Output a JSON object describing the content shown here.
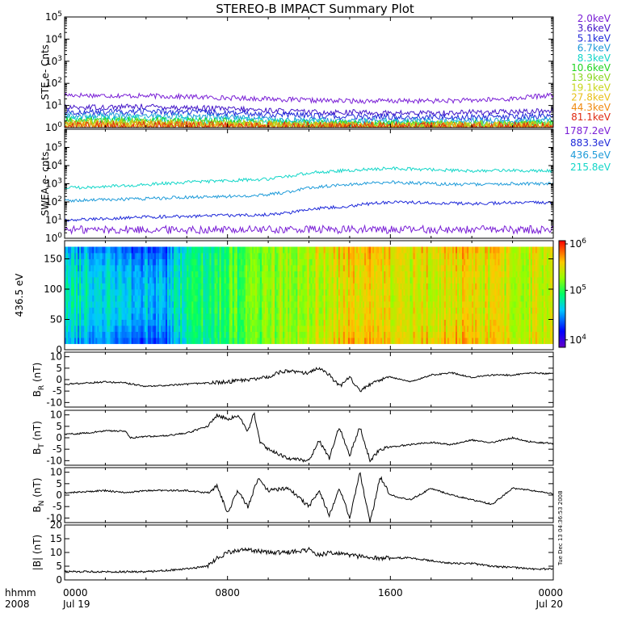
{
  "title": "STEREO-B IMPACT Summary Plot",
  "x_axis": {
    "corner_label_top": "hhmm",
    "corner_label_bottom": "2008",
    "ticks": [
      {
        "time": "0000",
        "date": "Jul 19",
        "hour": 0
      },
      {
        "time": "0800",
        "date": "",
        "hour": 8
      },
      {
        "time": "1600",
        "date": "",
        "hour": 16
      },
      {
        "time": "0000",
        "date": "Jul 20",
        "hour": 24
      }
    ]
  },
  "timestamp_vertical": "Tue Dec 13 04:36:53 2008",
  "chart_data": [
    {
      "type": "line",
      "ylabel": "STE e- Cnts",
      "yscale": "log",
      "ylim": [
        1,
        100000
      ],
      "yticks": [
        {
          "base": "10",
          "exp": "0",
          "value": 1
        },
        {
          "base": "10",
          "exp": "1",
          "value": 10
        },
        {
          "base": "10",
          "exp": "2",
          "value": 100
        },
        {
          "base": "10",
          "exp": "3",
          "value": 1000
        },
        {
          "base": "10",
          "exp": "4",
          "value": 10000
        },
        {
          "base": "10",
          "exp": "5",
          "value": 100000
        }
      ],
      "x_hours": [
        0,
        2,
        4,
        6,
        8,
        10,
        12,
        14,
        16,
        18,
        20,
        22,
        24
      ],
      "series": [
        {
          "name": "2.0keV",
          "color": "#7a1fd6",
          "values": [
            30,
            28,
            27,
            25,
            22,
            20,
            17,
            16,
            16,
            16,
            17,
            20,
            30
          ]
        },
        {
          "name": "3.6keV",
          "color": "#4416c8",
          "values": [
            8,
            8.5,
            9,
            8,
            7,
            6,
            5,
            5,
            4.5,
            4.5,
            5,
            5,
            6
          ]
        },
        {
          "name": "5.1keV",
          "color": "#1f2ad9",
          "values": [
            5,
            5,
            5.5,
            5,
            4.5,
            4,
            3.5,
            3,
            3,
            3,
            3,
            3,
            3.5
          ]
        },
        {
          "name": "6.7keV",
          "color": "#1e9bd9",
          "values": [
            3.5,
            3.5,
            3.5,
            3.2,
            3,
            2.5,
            2.2,
            2,
            2,
            2,
            2,
            2,
            2.2
          ]
        },
        {
          "name": "8.3keV",
          "color": "#12d6c8",
          "values": [
            2.5,
            2.5,
            2.5,
            2.3,
            2.1,
            1.9,
            1.7,
            1.6,
            1.6,
            1.6,
            1.6,
            1.6,
            1.7
          ]
        },
        {
          "name": "10.6keV",
          "color": "#22d622",
          "values": [
            2,
            2,
            2,
            1.9,
            1.8,
            1.6,
            1.5,
            1.4,
            1.4,
            1.4,
            1.4,
            1.4,
            1.5
          ]
        },
        {
          "name": "13.9keV",
          "color": "#8ad61e",
          "values": [
            1.7,
            1.7,
            1.7,
            1.6,
            1.5,
            1.4,
            1.3,
            1.3,
            1.3,
            1.3,
            1.3,
            1.3,
            1.3
          ]
        },
        {
          "name": "19.1keV",
          "color": "#c8d61a",
          "values": [
            1.5,
            1.5,
            1.5,
            1.4,
            1.4,
            1.3,
            1.2,
            1.2,
            1.2,
            1.2,
            1.2,
            1.2,
            1.2
          ]
        },
        {
          "name": "27.8keV",
          "color": "#e8c01a",
          "values": [
            1.3,
            1.3,
            1.3,
            1.3,
            1.2,
            1.2,
            1.1,
            1.1,
            1.1,
            1.1,
            1.1,
            1.1,
            1.1
          ]
        },
        {
          "name": "44.3keV",
          "color": "#f08a10",
          "values": [
            1.2,
            1.2,
            1.2,
            1.2,
            1.1,
            1.1,
            1.05,
            1.05,
            1.05,
            1.05,
            1.05,
            1.05,
            1.05
          ]
        },
        {
          "name": "81.1keV",
          "color": "#e02a10",
          "values": [
            1.1,
            1.1,
            1.1,
            1.1,
            1.05,
            1.05,
            1.02,
            1.02,
            1.02,
            1.02,
            1.02,
            1.02,
            1.02
          ]
        }
      ]
    },
    {
      "type": "line",
      "ylabel": "SWEA e- cnts",
      "yscale": "log",
      "ylim": [
        1,
        1000000
      ],
      "yticks": [
        {
          "base": "10",
          "exp": "0",
          "value": 1
        },
        {
          "base": "10",
          "exp": "1",
          "value": 10
        },
        {
          "base": "10",
          "exp": "2",
          "value": 100
        },
        {
          "base": "10",
          "exp": "3",
          "value": 1000
        },
        {
          "base": "10",
          "exp": "4",
          "value": 10000
        },
        {
          "base": "10",
          "exp": "5",
          "value": 100000
        }
      ],
      "x_hours": [
        0,
        2,
        4,
        6,
        8,
        10,
        11,
        12,
        14,
        16,
        18,
        20,
        22,
        24
      ],
      "series": [
        {
          "name": "1787.2eV",
          "color": "#7a1fd6",
          "values": [
            3,
            3,
            3,
            3,
            3,
            3,
            3,
            3,
            3,
            3,
            3,
            3,
            3,
            3
          ]
        },
        {
          "name": "883.3eV",
          "color": "#1f2ad9",
          "values": [
            10,
            12,
            15,
            16,
            18,
            20,
            25,
            40,
            60,
            100,
            90,
            80,
            90,
            90
          ]
        },
        {
          "name": "436.5eV",
          "color": "#1e9bd9",
          "values": [
            120,
            130,
            150,
            180,
            200,
            250,
            350,
            600,
            900,
            1200,
            1000,
            900,
            1000,
            1000
          ]
        },
        {
          "name": "215.8eV",
          "color": "#12d6c8",
          "values": [
            600,
            700,
            900,
            1200,
            1500,
            1800,
            2500,
            4000,
            5500,
            7000,
            6000,
            5000,
            5500,
            5000
          ]
        }
      ]
    },
    {
      "type": "heatmap",
      "ylabel": "436.5 eV",
      "ylim": [
        0,
        180
      ],
      "yticks": [
        0,
        50,
        100,
        150
      ],
      "colorbar": {
        "scale": "log",
        "ticks": [
          {
            "base": "10",
            "exp": "6",
            "value": 1000000
          },
          {
            "base": "10",
            "exp": "5",
            "value": 100000
          },
          {
            "base": "10",
            "exp": "4",
            "value": 10000
          }
        ]
      },
      "pitch_angle_range": [
        10,
        170
      ],
      "x_hours": [
        0,
        1,
        2,
        3,
        4,
        5,
        6,
        7,
        8,
        9,
        10,
        11,
        12,
        13,
        14,
        15,
        16,
        17,
        18,
        19,
        20,
        21,
        22,
        23,
        24
      ],
      "flux_low_pitch": [
        20000,
        20000,
        18000,
        15000,
        12000,
        12000,
        40000,
        60000,
        80000,
        100000,
        150000,
        200000,
        250000,
        400000,
        500000,
        500000,
        450000,
        300000,
        500000,
        600000,
        500000,
        400000,
        300000,
        300000,
        300000
      ],
      "flux_high_pitch": [
        60000,
        55000,
        50000,
        45000,
        40000,
        40000,
        70000,
        90000,
        110000,
        130000,
        160000,
        180000,
        200000,
        250000,
        280000,
        300000,
        280000,
        250000,
        260000,
        280000,
        270000,
        250000,
        230000,
        230000,
        230000
      ]
    },
    {
      "type": "line",
      "ylabel_main": "B",
      "ylabel_sub": "R",
      "ylabel_unit": "(nT)",
      "ylim": [
        -12,
        12
      ],
      "yticks": [
        -10,
        -5,
        0,
        5,
        10
      ],
      "x_hours": [
        0,
        1,
        2,
        3,
        4,
        5,
        6,
        7,
        8,
        9,
        10,
        10.5,
        11,
        11.5,
        12,
        12.5,
        13,
        13.5,
        14,
        14.5,
        15,
        15.5,
        16,
        17,
        18,
        19,
        20,
        21,
        22,
        23,
        24
      ],
      "values": [
        -2,
        -1.5,
        -1,
        -1.5,
        -3,
        -2.5,
        -2,
        -1.5,
        -1,
        0,
        1,
        3,
        4,
        3,
        3,
        5,
        2,
        -3,
        1,
        -5,
        -2,
        0,
        1,
        -1,
        2,
        3,
        1,
        2,
        2,
        3,
        2.5
      ]
    },
    {
      "type": "line",
      "ylabel_main": "B",
      "ylabel_sub": "T",
      "ylabel_unit": "(nT)",
      "ylim": [
        -12,
        12
      ],
      "yticks": [
        -10,
        -5,
        0,
        5,
        10
      ],
      "x_hours": [
        0,
        1,
        2,
        3,
        3.2,
        4,
        5,
        6,
        7,
        7.5,
        8,
        8.5,
        9,
        9.3,
        9.6,
        10,
        10.5,
        11,
        12,
        12.5,
        13,
        13.5,
        14,
        14.5,
        15,
        15.5,
        16,
        17,
        18,
        19,
        20,
        21,
        22,
        23,
        24
      ],
      "values": [
        1.5,
        2,
        3,
        3,
        0,
        0.5,
        1,
        2,
        5,
        10,
        8,
        10,
        3,
        11,
        -2,
        -5,
        -7,
        -9,
        -10,
        -1,
        -9,
        5,
        -8,
        5,
        -10,
        -5,
        -4,
        -3,
        -2,
        -3,
        -1,
        -2,
        0,
        -2,
        -2.5
      ]
    },
    {
      "type": "line",
      "ylabel_main": "B",
      "ylabel_sub": "N",
      "ylabel_unit": "(nT)",
      "ylim": [
        -12,
        12
      ],
      "yticks": [
        -10,
        -5,
        0,
        5,
        10
      ],
      "x_hours": [
        0,
        1,
        2,
        3,
        4,
        5,
        6,
        7,
        7.5,
        8,
        8.5,
        9,
        9.5,
        10,
        11,
        12,
        12.5,
        13,
        13.5,
        14,
        14.5,
        15,
        15.5,
        16,
        17,
        18,
        19,
        20,
        21,
        22,
        23,
        24
      ],
      "values": [
        1,
        1.5,
        2,
        1,
        2,
        2,
        2,
        1,
        4,
        -8,
        2,
        -5,
        7,
        2,
        3,
        -5,
        2,
        -9,
        3,
        -10,
        10,
        -12,
        8,
        0,
        -2,
        3,
        0,
        -2,
        -4,
        3,
        2,
        0.5
      ]
    },
    {
      "type": "line",
      "ylabel_main": "|B|",
      "ylabel_unit": "(nT)",
      "ylim": [
        0,
        20
      ],
      "yticks": [
        0,
        5,
        10,
        15,
        20
      ],
      "x_hours": [
        0,
        2,
        4,
        6,
        7,
        7.5,
        8,
        9,
        10,
        11,
        12,
        12.5,
        13,
        14,
        15,
        16,
        17,
        18,
        19,
        20,
        21,
        22,
        23,
        24
      ],
      "values": [
        3,
        3,
        3,
        4,
        5,
        8,
        10,
        11,
        10,
        10,
        11,
        9,
        10,
        9,
        8,
        8,
        8,
        7,
        6,
        6,
        5,
        4.5,
        4,
        4
      ]
    }
  ]
}
